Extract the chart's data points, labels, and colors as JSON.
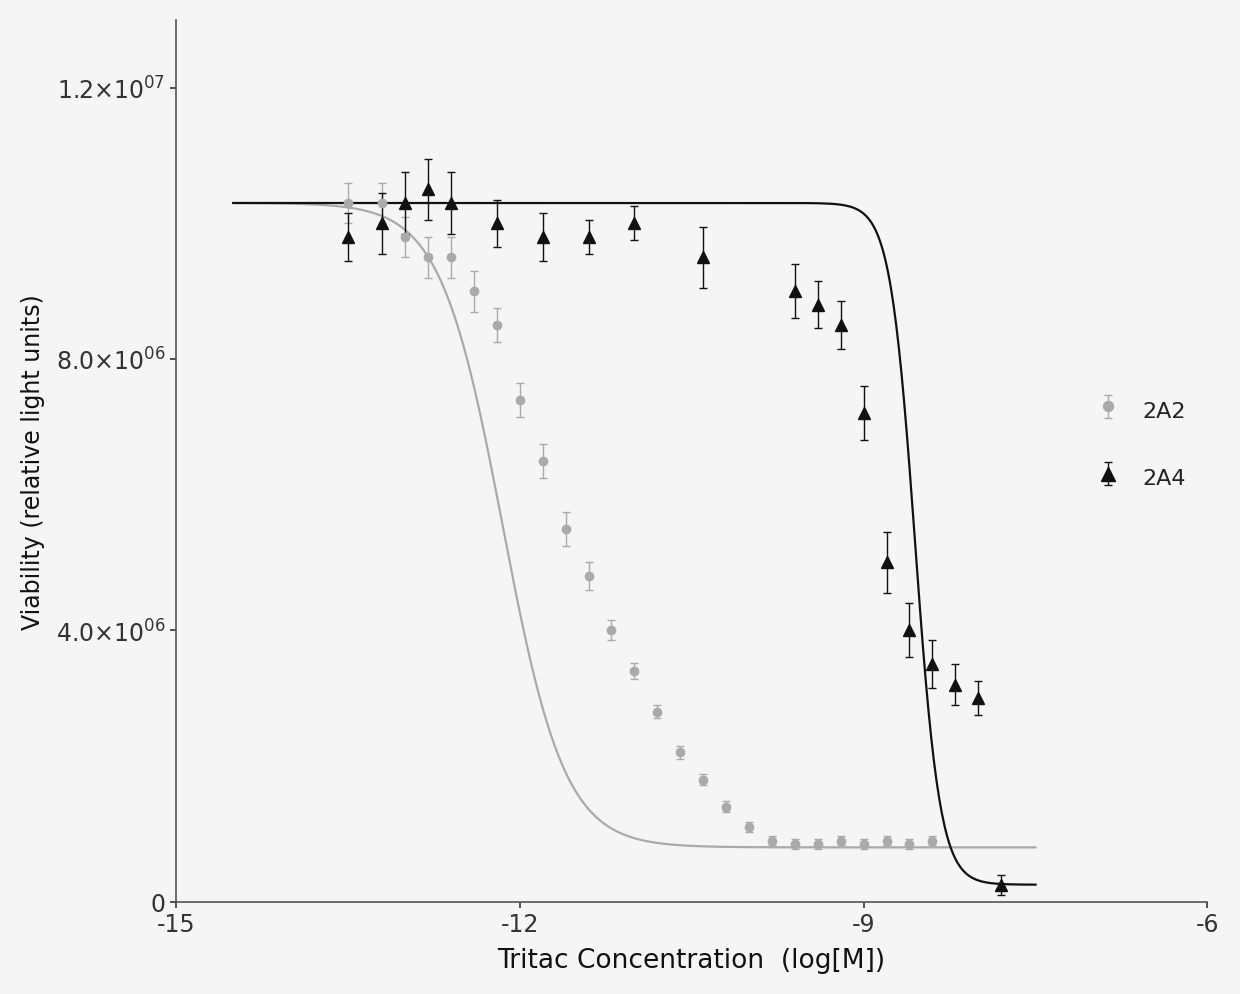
{
  "title": "",
  "xlabel": "Tritac Concentration  (log[M])",
  "ylabel": "Viability (relative light units)",
  "xlim": [
    -15,
    -6
  ],
  "ylim": [
    0,
    13000000.0
  ],
  "xticks": [
    -15,
    -12,
    -9,
    -6
  ],
  "yticks": [
    0,
    4000000,
    8000000,
    12000000
  ],
  "series": [
    {
      "name": "2A2",
      "color": "#aaaaaa",
      "marker": "o",
      "markersize": 6,
      "top": 10300000.0,
      "bottom": 800000.0,
      "ec50_log": -12.15,
      "hill": 1.6,
      "x_data": [
        -13.5,
        -13.2,
        -13.0,
        -12.8,
        -12.6,
        -12.4,
        -12.2,
        -12.0,
        -11.8,
        -11.6,
        -11.4,
        -11.2,
        -11.0,
        -10.8,
        -10.6,
        -10.4,
        -10.2,
        -10.0,
        -9.8,
        -9.6,
        -9.4,
        -9.2,
        -9.0,
        -8.8,
        -8.6,
        -8.4
      ],
      "y_data": [
        10300000.0,
        10300000.0,
        9800000.0,
        9500000.0,
        9500000.0,
        9000000.0,
        8500000.0,
        7400000.0,
        6500000.0,
        5500000.0,
        4800000.0,
        4000000.0,
        3400000.0,
        2800000.0,
        2200000.0,
        1800000.0,
        1400000.0,
        1100000.0,
        900000.0,
        850000.0,
        850000.0,
        900000.0,
        850000.0,
        900000.0,
        850000.0,
        900000.0
      ],
      "yerr": [
        300000.0,
        300000.0,
        300000.0,
        300000.0,
        300000.0,
        300000.0,
        250000.0,
        250000.0,
        250000.0,
        250000.0,
        200000.0,
        150000.0,
        120000.0,
        100000.0,
        100000.0,
        80000.0,
        80000.0,
        80000.0,
        70000.0,
        70000.0,
        70000.0,
        70000.0,
        70000.0,
        70000.0,
        70000.0,
        70000.0
      ]
    },
    {
      "name": "2A4",
      "color": "#111111",
      "marker": "^",
      "markersize": 8,
      "top": 10300000.0,
      "bottom": 250000.0,
      "ec50_log": -8.55,
      "hill": 4.0,
      "x_data": [
        -13.5,
        -13.2,
        -13.0,
        -12.8,
        -12.6,
        -12.2,
        -11.8,
        -11.4,
        -11.0,
        -10.4,
        -9.6,
        -9.4,
        -9.2,
        -9.0,
        -8.8,
        -8.6,
        -8.4,
        -8.2,
        -8.0,
        -7.8
      ],
      "y_data": [
        9800000.0,
        10000000.0,
        10300000.0,
        10500000.0,
        10300000.0,
        10000000.0,
        9800000.0,
        9800000.0,
        10000000.0,
        9500000.0,
        9000000.0,
        8800000.0,
        8500000.0,
        7200000.0,
        5000000.0,
        4000000.0,
        3500000.0,
        3200000.0,
        3000000.0,
        250000.0
      ],
      "yerr": [
        350000.0,
        450000.0,
        450000.0,
        450000.0,
        450000.0,
        350000.0,
        350000.0,
        250000.0,
        250000.0,
        450000.0,
        400000.0,
        350000.0,
        350000.0,
        400000.0,
        450000.0,
        400000.0,
        350000.0,
        300000.0,
        250000.0,
        150000.0
      ]
    }
  ],
  "background_color": "#f5f5f5",
  "legend_loc": "center right",
  "legend_fontsize": 16
}
